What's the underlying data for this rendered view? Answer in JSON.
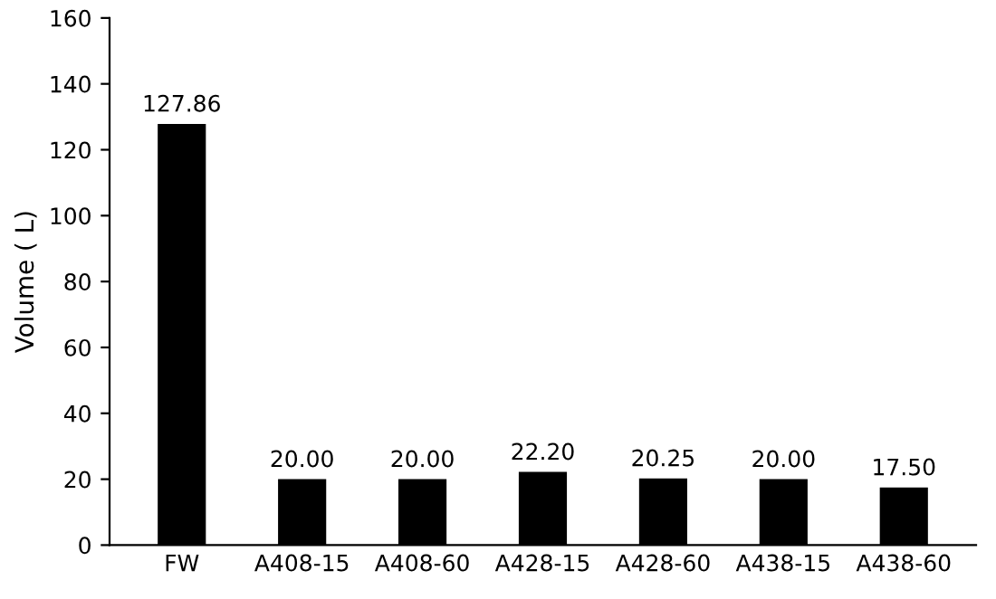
{
  "chart_data": {
    "type": "bar",
    "ylabel": "Volume ( L)",
    "categories": [
      "FW",
      "A408-15",
      "A408-60",
      "A428-15",
      "A428-60",
      "A438-15",
      "A438-60"
    ],
    "values": [
      127.86,
      20.0,
      20.0,
      22.2,
      20.25,
      20.0,
      17.5
    ],
    "value_labels": [
      "127.86",
      "20.00",
      "20.00",
      "22.20",
      "20.25",
      "20.00",
      "17.50"
    ],
    "color": "#000000",
    "ylim": [
      0,
      160
    ],
    "yticks": [
      0,
      20,
      40,
      60,
      80,
      100,
      120,
      140,
      160
    ],
    "grid": false
  }
}
